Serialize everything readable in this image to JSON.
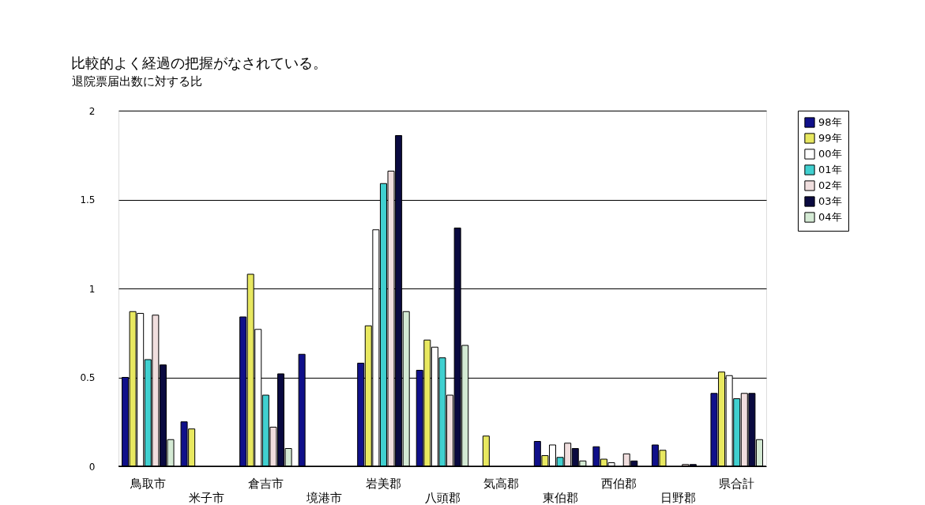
{
  "chart_data": {
    "type": "bar",
    "ylabel": "退院票届出数に対する比",
    "annotations": [
      "比較的よく経過の把握がなされている。"
    ],
    "categories": [
      "鳥取市",
      "米子市",
      "倉吉市",
      "境港市",
      "岩美郡",
      "八頭郡",
      "気高郡",
      "東伯郡",
      "西伯郡",
      "日野郡",
      "県合計"
    ],
    "series": [
      {
        "name": "98年",
        "color": "#10108a",
        "values": [
          0.5,
          0.25,
          0.84,
          0.63,
          0.58,
          0.54,
          null,
          0.14,
          0.11,
          0.12,
          0.41
        ]
      },
      {
        "name": "99年",
        "color": "#e8e860",
        "values": [
          0.87,
          0.21,
          1.08,
          null,
          0.79,
          0.71,
          0.17,
          0.06,
          0.04,
          0.09,
          0.53
        ]
      },
      {
        "name": "00年",
        "color": "#ffffff",
        "values": [
          0.86,
          null,
          0.77,
          null,
          1.33,
          0.67,
          null,
          0.12,
          0.02,
          null,
          0.51
        ]
      },
      {
        "name": "01年",
        "color": "#40d0d0",
        "values": [
          0.6,
          null,
          0.4,
          null,
          1.59,
          0.61,
          null,
          0.05,
          null,
          null,
          0.38
        ]
      },
      {
        "name": "02年",
        "color": "#f0dede",
        "values": [
          0.85,
          null,
          0.22,
          null,
          1.66,
          0.4,
          null,
          0.13,
          0.07,
          0.01,
          0.41
        ]
      },
      {
        "name": "03年",
        "color": "#0a0a40",
        "values": [
          0.57,
          null,
          0.52,
          null,
          1.86,
          1.34,
          null,
          0.1,
          0.03,
          0.01,
          0.41
        ]
      },
      {
        "name": "04年",
        "color": "#d4ead4",
        "values": [
          0.15,
          null,
          0.1,
          null,
          0.87,
          0.68,
          null,
          0.03,
          null,
          null,
          0.15
        ]
      }
    ],
    "ylim": [
      0,
      2
    ],
    "yticks": [
      {
        "value": 0,
        "label": "0"
      },
      {
        "value": 0.5,
        "label": "0.5"
      },
      {
        "value": 1,
        "label": "1"
      },
      {
        "value": 1.5,
        "label": "1.5"
      },
      {
        "value": 2,
        "label": "2"
      }
    ],
    "grid": "y",
    "legend": "right"
  }
}
